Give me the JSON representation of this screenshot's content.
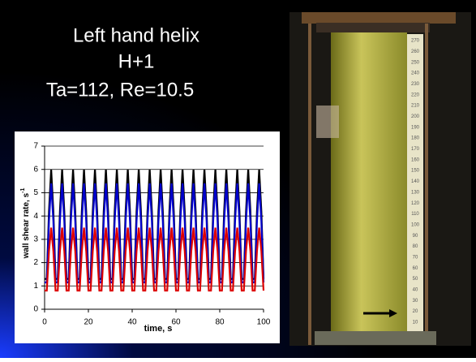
{
  "slide": {
    "title_lines": [
      "Left hand helix",
      "H+1",
      "Ta=112, Re=10.5"
    ]
  },
  "photo": {
    "ruler_labels": [
      "270",
      "260",
      "250",
      "240",
      "230",
      "220",
      "210",
      "200",
      "190",
      "180",
      "170",
      "160",
      "150",
      "140",
      "130",
      "120",
      "110",
      "100",
      "90",
      "80",
      "70",
      "60",
      "50",
      "40",
      "30",
      "20",
      "10"
    ]
  },
  "chart_data": {
    "type": "line",
    "x_label": "time, s",
    "y_label": "wall shear rate, s",
    "y_label_superscript": "-1",
    "x": [
      0,
      1,
      2,
      3,
      4,
      5,
      6,
      7,
      8,
      9,
      10,
      11,
      12,
      13,
      14,
      15,
      16,
      17,
      18,
      19,
      20,
      21,
      22,
      23,
      24,
      25,
      26,
      27,
      28,
      29,
      30,
      31,
      32,
      33,
      34,
      35,
      36,
      37,
      38,
      39,
      40,
      41,
      42,
      43,
      44,
      45,
      46,
      47,
      48,
      49,
      50,
      51,
      52,
      53,
      54,
      55,
      56,
      57,
      58,
      59,
      60,
      61,
      62,
      63,
      64,
      65,
      66,
      67,
      68,
      69,
      70,
      71,
      72,
      73,
      74,
      75,
      76,
      77,
      78,
      79,
      80,
      81,
      82,
      83,
      84,
      85,
      86,
      87,
      88,
      89,
      90,
      91,
      92,
      93,
      94,
      95,
      96,
      97,
      98,
      99,
      100
    ],
    "series": [
      {
        "color": "#000000",
        "values": [
          1.3,
          1.3,
          4.2,
          6.0,
          4.2,
          1.3,
          1.3,
          4.2,
          6.0,
          4.2,
          1.3,
          1.3,
          4.2,
          6.0,
          4.2,
          1.3,
          1.3,
          4.2,
          6.0,
          4.2,
          1.3,
          1.3,
          4.2,
          6.0,
          4.2,
          1.3,
          1.3,
          4.2,
          6.0,
          4.2,
          1.3,
          1.3,
          4.2,
          6.0,
          4.2,
          1.3,
          1.3,
          4.2,
          6.0,
          4.2,
          1.3,
          1.3,
          4.2,
          6.0,
          4.2,
          1.3,
          1.3,
          4.2,
          6.0,
          4.2,
          1.3,
          1.3,
          4.2,
          6.0,
          4.2,
          1.3,
          1.3,
          4.2,
          6.0,
          4.2,
          1.3,
          1.3,
          4.2,
          6.0,
          4.2,
          1.3,
          1.3,
          4.2,
          6.0,
          4.2,
          1.3,
          1.3,
          4.2,
          6.0,
          4.2,
          1.3,
          1.3,
          4.2,
          6.0,
          4.2,
          1.3,
          1.3,
          4.2,
          6.0,
          4.2,
          1.3,
          1.3,
          4.2,
          6.0,
          4.2,
          1.3,
          1.3,
          4.2,
          6.0,
          4.2,
          1.3,
          1.3,
          4.2,
          6.0,
          4.2,
          1.3
        ]
      },
      {
        "color": "#0000cc",
        "values": [
          1.15,
          1.15,
          3.78,
          5.4,
          3.78,
          1.15,
          1.15,
          3.78,
          5.4,
          3.78,
          1.15,
          1.15,
          3.78,
          5.4,
          3.78,
          1.15,
          1.15,
          3.78,
          5.4,
          3.78,
          1.15,
          1.15,
          3.78,
          5.4,
          3.78,
          1.15,
          1.15,
          3.78,
          5.4,
          3.78,
          1.15,
          1.15,
          3.78,
          5.4,
          3.78,
          1.15,
          1.15,
          3.78,
          5.4,
          3.78,
          1.15,
          1.15,
          3.78,
          5.4,
          3.78,
          1.15,
          1.15,
          3.78,
          5.4,
          3.78,
          1.15,
          1.15,
          3.78,
          5.4,
          3.78,
          1.15,
          1.15,
          3.78,
          5.4,
          3.78,
          1.15,
          1.15,
          3.78,
          5.4,
          3.78,
          1.15,
          1.15,
          3.78,
          5.4,
          3.78,
          1.15,
          1.15,
          3.78,
          5.4,
          3.78,
          1.15,
          1.15,
          3.78,
          5.4,
          3.78,
          1.15,
          1.15,
          3.78,
          5.4,
          3.78,
          1.15,
          1.15,
          3.78,
          5.4,
          3.78,
          1.15,
          1.15,
          3.78,
          5.4,
          3.78,
          1.15,
          1.15,
          3.78,
          5.4,
          3.78,
          1.15
        ]
      },
      {
        "color": "#dd0000",
        "values": [
          0.8,
          0.8,
          2.5,
          3.5,
          2.5,
          0.8,
          0.8,
          2.5,
          3.5,
          2.5,
          0.8,
          0.8,
          2.5,
          3.5,
          2.5,
          0.8,
          0.8,
          2.5,
          3.5,
          2.5,
          0.8,
          0.8,
          2.5,
          3.5,
          2.5,
          0.8,
          0.8,
          2.5,
          3.5,
          2.5,
          0.8,
          0.8,
          2.5,
          3.5,
          2.5,
          0.8,
          0.8,
          2.5,
          3.5,
          2.5,
          0.8,
          0.8,
          2.5,
          3.5,
          2.5,
          0.8,
          0.8,
          2.5,
          3.5,
          2.5,
          0.8,
          0.8,
          2.5,
          3.5,
          2.5,
          0.8,
          0.8,
          2.5,
          3.5,
          2.5,
          0.8,
          0.8,
          2.5,
          3.5,
          2.5,
          0.8,
          0.8,
          2.5,
          3.5,
          2.5,
          0.8,
          0.8,
          2.5,
          3.5,
          2.5,
          0.8,
          0.8,
          2.5,
          3.5,
          2.5,
          0.8,
          0.8,
          2.5,
          3.5,
          2.5,
          0.8,
          0.8,
          2.5,
          3.5,
          2.5,
          0.8,
          0.8,
          2.5,
          3.5,
          2.5,
          0.8,
          0.8,
          2.5,
          3.5,
          2.5,
          0.8
        ]
      }
    ],
    "xlim": [
      0,
      100
    ],
    "xticks": [
      0,
      20,
      40,
      60,
      80,
      100
    ],
    "ylim": [
      0,
      7
    ],
    "yticks": [
      0,
      1,
      2,
      3,
      4,
      5,
      6,
      7
    ],
    "grid": true
  }
}
